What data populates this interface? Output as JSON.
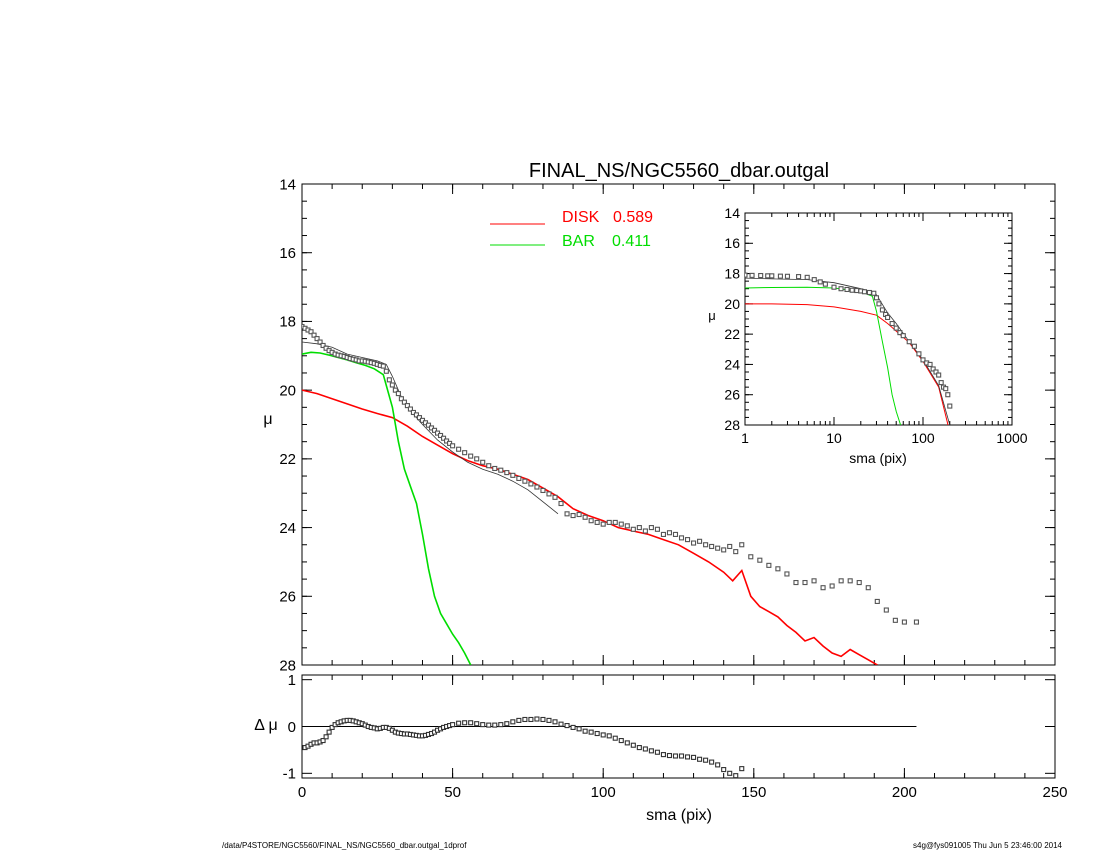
{
  "page": {
    "title": "FINAL_NS/NGC5560_dbar.outgal",
    "footer_left": "/data/P4STORE/NGC5560/FINAL_NS/NGC5560_dbar.outgal_1dprof",
    "footer_right": "s4g@fys091005  Thu Jun  5 23:46:00 2014"
  },
  "colors": {
    "disk": "#ff0000",
    "bar": "#00dd00",
    "data": "#555555",
    "total": "#333333",
    "axis": "#000000"
  },
  "chart_data": [
    {
      "id": "main",
      "type": "line",
      "title": "FINAL_NS/NGC5560_dbar.outgal",
      "xlabel": "",
      "ylabel": "μ",
      "xlim": [
        0,
        250
      ],
      "ylim": [
        28,
        14
      ],
      "yticks": [
        14,
        16,
        18,
        20,
        22,
        24,
        26,
        28
      ],
      "legend": [
        {
          "label": "DISK",
          "value": "0.589",
          "color": "#ff0000"
        },
        {
          "label": "BAR",
          "value": "0.411",
          "color": "#00dd00"
        }
      ],
      "legend_position": "top-center",
      "series": [
        {
          "name": "DISK",
          "style": "line",
          "color": "#ff0000",
          "x": [
            0,
            5,
            10,
            15,
            20,
            25,
            30,
            35,
            40,
            45,
            50,
            55,
            60,
            65,
            70,
            75,
            80,
            85,
            90,
            95,
            100,
            105,
            110,
            115,
            120,
            125,
            130,
            135,
            140,
            143,
            146,
            149,
            152,
            155,
            158,
            161,
            164,
            167,
            170,
            173,
            176,
            179,
            182,
            185,
            188,
            191
          ],
          "y": [
            20.0,
            20.1,
            20.25,
            20.4,
            20.55,
            20.68,
            20.8,
            21.05,
            21.35,
            21.6,
            21.85,
            22.05,
            22.2,
            22.3,
            22.45,
            22.6,
            22.85,
            23.1,
            23.45,
            23.65,
            23.8,
            24.0,
            24.1,
            24.2,
            24.35,
            24.5,
            24.75,
            25.0,
            25.3,
            25.55,
            25.25,
            26.0,
            26.3,
            26.45,
            26.6,
            26.85,
            27.05,
            27.3,
            27.2,
            27.45,
            27.65,
            27.75,
            27.55,
            27.7,
            27.85,
            28.0
          ]
        },
        {
          "name": "BAR",
          "style": "line",
          "color": "#00dd00",
          "x": [
            0,
            3,
            6,
            9,
            12,
            15,
            18,
            21,
            24,
            27,
            30,
            32,
            34,
            36,
            38,
            40,
            42,
            44,
            46,
            48,
            50,
            52,
            54,
            56
          ],
          "y": [
            18.95,
            18.9,
            18.92,
            18.98,
            19.05,
            19.12,
            19.2,
            19.28,
            19.38,
            19.55,
            20.5,
            21.5,
            22.3,
            22.8,
            23.3,
            24.2,
            25.2,
            26.0,
            26.5,
            26.8,
            27.1,
            27.35,
            27.65,
            28.0
          ]
        },
        {
          "name": "",
          "style": "thin-line",
          "color": "#333333",
          "x": [
            0,
            5,
            10,
            15,
            20,
            25,
            28,
            30,
            33,
            36,
            40,
            45,
            50,
            55,
            60,
            65,
            70,
            75,
            80,
            85
          ],
          "y": [
            18.6,
            18.65,
            18.75,
            18.95,
            19.05,
            19.15,
            19.25,
            19.6,
            20.2,
            20.6,
            21.0,
            21.45,
            21.8,
            22.1,
            22.3,
            22.45,
            22.65,
            22.9,
            23.25,
            23.6
          ]
        },
        {
          "name": "",
          "style": "markers",
          "color": "#555555",
          "x": [
            0,
            1,
            2,
            3,
            4,
            5,
            6,
            7,
            8,
            9,
            10,
            11,
            12,
            13,
            14,
            15,
            16,
            17,
            18,
            19,
            20,
            21,
            22,
            23,
            24,
            25,
            26,
            27,
            28,
            29,
            30,
            31,
            32,
            33,
            34,
            35,
            36,
            37,
            38,
            39,
            40,
            41,
            42,
            43,
            44,
            45,
            46,
            47,
            48,
            49,
            50,
            52,
            54,
            56,
            58,
            60,
            62,
            64,
            66,
            68,
            70,
            72,
            74,
            76,
            78,
            80,
            82,
            84,
            86,
            88,
            90,
            92,
            94,
            96,
            98,
            100,
            102,
            104,
            106,
            108,
            110,
            112,
            114,
            116,
            118,
            120,
            122,
            124,
            126,
            128,
            130,
            132,
            134,
            136,
            138,
            140,
            142,
            144,
            146,
            149,
            152,
            155,
            158,
            161,
            164,
            167,
            170,
            173,
            176,
            179,
            182,
            185,
            188,
            191,
            194,
            197,
            200,
            204
          ],
          "y": [
            18.15,
            18.2,
            18.25,
            18.3,
            18.4,
            18.5,
            18.6,
            18.7,
            18.78,
            18.85,
            18.9,
            18.95,
            18.98,
            19.0,
            19.02,
            19.05,
            19.08,
            19.1,
            19.12,
            19.15,
            19.15,
            19.16,
            19.18,
            19.2,
            19.22,
            19.25,
            19.28,
            19.3,
            19.45,
            19.7,
            19.85,
            20.0,
            20.1,
            20.25,
            20.35,
            20.45,
            20.55,
            20.65,
            20.72,
            20.8,
            20.88,
            20.95,
            21.02,
            21.1,
            21.17,
            21.25,
            21.32,
            21.4,
            21.48,
            21.55,
            21.62,
            21.72,
            21.82,
            21.92,
            22.0,
            22.1,
            22.2,
            22.28,
            22.33,
            22.4,
            22.48,
            22.57,
            22.65,
            22.73,
            22.82,
            22.92,
            23.02,
            23.12,
            23.3,
            23.6,
            23.65,
            23.62,
            23.7,
            23.8,
            23.85,
            23.9,
            23.85,
            23.85,
            23.9,
            23.95,
            24.05,
            24.0,
            24.1,
            24.0,
            24.05,
            24.2,
            24.15,
            24.2,
            24.3,
            24.35,
            24.45,
            24.4,
            24.5,
            24.55,
            24.6,
            24.65,
            24.55,
            24.7,
            24.5,
            24.85,
            24.95,
            25.1,
            25.2,
            25.35,
            25.6,
            25.6,
            25.55,
            25.75,
            25.7,
            25.55,
            25.55,
            25.6,
            25.75,
            26.15,
            26.4,
            26.7,
            26.75,
            26.75
          ]
        }
      ]
    },
    {
      "id": "inset",
      "type": "line",
      "xlabel": "sma (pix)",
      "ylabel": "μ",
      "xscale": "log",
      "xlim": [
        1,
        1000
      ],
      "ylim": [
        28,
        14
      ],
      "xticks": [
        1,
        10,
        100,
        1000
      ],
      "xtick_labels": [
        "1",
        "10",
        "100",
        "1000"
      ],
      "yticks": [
        14,
        16,
        18,
        20,
        22,
        24,
        26,
        28
      ],
      "series": [
        {
          "name": "DISK",
          "style": "line",
          "color": "#ff0000",
          "x": [
            1,
            2,
            5,
            10,
            20,
            30,
            40,
            50,
            70,
            100,
            150,
            191
          ],
          "y": [
            20.0,
            20.0,
            20.05,
            20.2,
            20.5,
            20.75,
            21.3,
            21.8,
            22.55,
            23.8,
            25.5,
            28.0
          ]
        },
        {
          "name": "BAR",
          "style": "line",
          "color": "#00dd00",
          "x": [
            1,
            2,
            5,
            10,
            20,
            27,
            30,
            35,
            40,
            45,
            50,
            56
          ],
          "y": [
            18.95,
            18.92,
            18.9,
            18.95,
            19.2,
            19.5,
            20.5,
            22.5,
            24.2,
            26.0,
            27.1,
            28.0
          ]
        },
        {
          "name": "",
          "style": "thin-line",
          "color": "#333333",
          "x": [
            1,
            2,
            5,
            10,
            20,
            25,
            30,
            40,
            50,
            70,
            100,
            150,
            200
          ],
          "y": [
            18.3,
            18.35,
            18.4,
            18.6,
            19.0,
            19.15,
            19.4,
            20.6,
            21.3,
            22.5,
            23.7,
            25.4,
            28.0
          ]
        },
        {
          "name": "",
          "style": "markers",
          "color": "#555555",
          "x": [
            1,
            1.2,
            1.5,
            1.8,
            2,
            2.5,
            3,
            4,
            5,
            6,
            7,
            8,
            10,
            12,
            14,
            16,
            18,
            20,
            22,
            25,
            28,
            30,
            32,
            35,
            38,
            40,
            45,
            50,
            55,
            60,
            70,
            80,
            90,
            100,
            110,
            120,
            130,
            140,
            150,
            160,
            170,
            180,
            190,
            200
          ],
          "y": [
            18.1,
            18.12,
            18.13,
            18.15,
            18.15,
            18.17,
            18.18,
            18.2,
            18.25,
            18.4,
            18.55,
            18.7,
            18.9,
            19.0,
            19.05,
            19.1,
            19.12,
            19.15,
            19.2,
            19.25,
            19.3,
            19.6,
            20.0,
            20.4,
            20.7,
            20.9,
            21.3,
            21.6,
            21.9,
            22.1,
            22.5,
            22.8,
            23.3,
            23.7,
            23.9,
            24.0,
            24.3,
            24.5,
            24.7,
            25.2,
            25.5,
            25.6,
            26.0,
            26.75
          ]
        }
      ]
    },
    {
      "id": "residual",
      "type": "scatter",
      "xlabel": "sma (pix)",
      "ylabel": "Δ μ",
      "xlim": [
        0,
        250
      ],
      "ylim": [
        -1.1,
        1.1
      ],
      "xticks": [
        0,
        50,
        100,
        150,
        200,
        250
      ],
      "yticks": [
        -1,
        0,
        1
      ],
      "zero_line_x_end": 204,
      "series": [
        {
          "name": "",
          "style": "markers",
          "color": "#333333",
          "x": [
            1,
            2,
            3,
            4,
            5,
            6,
            7,
            8,
            9,
            10,
            11,
            12,
            13,
            14,
            15,
            16,
            17,
            18,
            19,
            20,
            21,
            22,
            23,
            24,
            25,
            26,
            27,
            28,
            29,
            30,
            31,
            32,
            33,
            34,
            35,
            36,
            37,
            38,
            39,
            40,
            41,
            42,
            43,
            44,
            45,
            46,
            47,
            48,
            49,
            50,
            52,
            54,
            56,
            58,
            60,
            62,
            64,
            66,
            68,
            70,
            72,
            74,
            76,
            78,
            80,
            82,
            84,
            86,
            88,
            90,
            92,
            94,
            96,
            98,
            100,
            102,
            104,
            106,
            108,
            110,
            112,
            114,
            116,
            118,
            120,
            122,
            124,
            126,
            128,
            130,
            132,
            134,
            136,
            138,
            140,
            142,
            144,
            146
          ],
          "y": [
            -0.45,
            -0.42,
            -0.38,
            -0.35,
            -0.35,
            -0.33,
            -0.3,
            -0.22,
            -0.12,
            -0.02,
            0.04,
            0.08,
            0.1,
            0.12,
            0.13,
            0.13,
            0.12,
            0.1,
            0.08,
            0.06,
            0.03,
            0.0,
            -0.02,
            -0.03,
            -0.05,
            -0.04,
            -0.02,
            -0.02,
            -0.04,
            -0.08,
            -0.12,
            -0.14,
            -0.15,
            -0.16,
            -0.16,
            -0.17,
            -0.18,
            -0.19,
            -0.2,
            -0.2,
            -0.19,
            -0.17,
            -0.15,
            -0.12,
            -0.08,
            -0.05,
            -0.02,
            0.0,
            0.02,
            0.04,
            0.07,
            0.08,
            0.08,
            0.06,
            0.04,
            0.03,
            0.03,
            0.04,
            0.06,
            0.1,
            0.13,
            0.15,
            0.15,
            0.16,
            0.15,
            0.13,
            0.1,
            0.05,
            0.02,
            -0.02,
            -0.05,
            -0.1,
            -0.12,
            -0.15,
            -0.18,
            -0.2,
            -0.25,
            -0.3,
            -0.35,
            -0.4,
            -0.45,
            -0.48,
            -0.52,
            -0.55,
            -0.6,
            -0.62,
            -0.63,
            -0.63,
            -0.65,
            -0.66,
            -0.7,
            -0.72,
            -0.76,
            -0.82,
            -0.92,
            -1.0,
            -1.05,
            -0.9
          ]
        }
      ]
    }
  ]
}
